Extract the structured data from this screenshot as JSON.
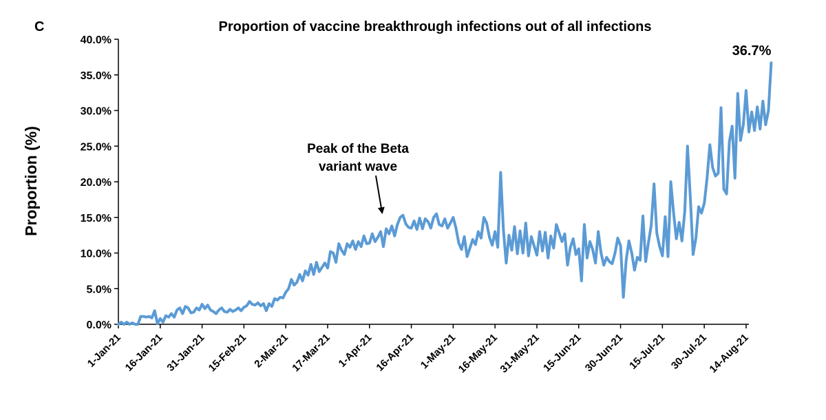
{
  "panel_letter": "C",
  "colors": {
    "line": "#5b9bd5",
    "axis": "#000000"
  },
  "chart_data": {
    "type": "line",
    "title": "Proportion of vaccine breakthrough infections out of all infections",
    "xlabel": "",
    "ylabel": "Proportion (%)",
    "ylim": [
      0,
      40
    ],
    "y_ticks": [
      "0.0%",
      "5.0%",
      "10.0%",
      "15.0%",
      "20.0%",
      "25.0%",
      "30.0%",
      "35.0%",
      "40.0%"
    ],
    "x_start": "2021-01-01",
    "x_end": "2021-08-15",
    "x_ticks": [
      "1-Jan-21",
      "16-Jan-21",
      "31-Jan-21",
      "15-Feb-21",
      "2-Mar-21",
      "17-Mar-21",
      "1-Apr-21",
      "16-Apr-21",
      "1-May-21",
      "16-May-21",
      "31-May-21",
      "15-Jun-21",
      "30-Jun-21",
      "15-Jul-21",
      "30-Jul-21",
      "14-Aug-21"
    ],
    "grid": false,
    "legend": "none",
    "annotations": [
      {
        "text_lines": [
          "Peak of the Beta",
          "variant wave"
        ],
        "date": "2021-04-05",
        "value": 14.0
      }
    ],
    "end_label": "36.7%",
    "series": [
      {
        "points": [
          [
            "2021-01-01",
            0.0
          ],
          [
            "2021-01-02",
            0.3
          ],
          [
            "2021-01-03",
            0.0
          ],
          [
            "2021-01-04",
            0.3
          ],
          [
            "2021-01-05",
            0.0
          ],
          [
            "2021-01-06",
            0.2
          ],
          [
            "2021-01-07",
            0.0
          ],
          [
            "2021-01-08",
            0.0
          ],
          [
            "2021-01-09",
            1.1
          ],
          [
            "2021-01-10",
            1.1
          ],
          [
            "2021-01-11",
            1.0
          ],
          [
            "2021-01-12",
            1.1
          ],
          [
            "2021-01-13",
            0.9
          ],
          [
            "2021-01-14",
            1.9
          ],
          [
            "2021-01-15",
            0.1
          ],
          [
            "2021-01-16",
            0.8
          ],
          [
            "2021-01-17",
            0.3
          ],
          [
            "2021-01-18",
            1.2
          ],
          [
            "2021-01-19",
            1.0
          ],
          [
            "2021-01-20",
            1.5
          ],
          [
            "2021-01-21",
            1.0
          ],
          [
            "2021-01-22",
            2.0
          ],
          [
            "2021-01-23",
            2.3
          ],
          [
            "2021-01-24",
            1.5
          ],
          [
            "2021-01-25",
            2.5
          ],
          [
            "2021-01-26",
            2.3
          ],
          [
            "2021-01-27",
            1.6
          ],
          [
            "2021-01-28",
            1.7
          ],
          [
            "2021-01-29",
            2.3
          ],
          [
            "2021-01-30",
            2.0
          ],
          [
            "2021-01-31",
            2.8
          ],
          [
            "2021-02-01",
            2.2
          ],
          [
            "2021-02-02",
            2.7
          ],
          [
            "2021-02-03",
            2.0
          ],
          [
            "2021-02-04",
            1.8
          ],
          [
            "2021-02-05",
            1.5
          ],
          [
            "2021-02-06",
            2.0
          ],
          [
            "2021-02-07",
            2.3
          ],
          [
            "2021-02-08",
            1.8
          ],
          [
            "2021-02-09",
            1.7
          ],
          [
            "2021-02-10",
            2.1
          ],
          [
            "2021-02-11",
            1.8
          ],
          [
            "2021-02-12",
            2.0
          ],
          [
            "2021-02-13",
            2.3
          ],
          [
            "2021-02-14",
            1.9
          ],
          [
            "2021-02-15",
            2.4
          ],
          [
            "2021-02-16",
            2.6
          ],
          [
            "2021-02-17",
            3.2
          ],
          [
            "2021-02-18",
            2.8
          ],
          [
            "2021-02-19",
            2.7
          ],
          [
            "2021-02-20",
            3.0
          ],
          [
            "2021-02-21",
            2.6
          ],
          [
            "2021-02-22",
            2.9
          ],
          [
            "2021-02-23",
            1.9
          ],
          [
            "2021-02-24",
            2.9
          ],
          [
            "2021-02-25",
            2.5
          ],
          [
            "2021-02-26",
            3.6
          ],
          [
            "2021-02-27",
            3.4
          ],
          [
            "2021-02-28",
            3.8
          ],
          [
            "2021-03-01",
            3.7
          ],
          [
            "2021-03-02",
            4.5
          ],
          [
            "2021-03-03",
            5.0
          ],
          [
            "2021-03-04",
            6.3
          ],
          [
            "2021-03-05",
            5.5
          ],
          [
            "2021-03-06",
            5.9
          ],
          [
            "2021-03-07",
            7.0
          ],
          [
            "2021-03-08",
            6.1
          ],
          [
            "2021-03-09",
            7.5
          ],
          [
            "2021-03-10",
            6.9
          ],
          [
            "2021-03-11",
            8.4
          ],
          [
            "2021-03-12",
            7.0
          ],
          [
            "2021-03-13",
            8.7
          ],
          [
            "2021-03-14",
            7.4
          ],
          [
            "2021-03-15",
            8.0
          ],
          [
            "2021-03-16",
            8.6
          ],
          [
            "2021-03-17",
            7.9
          ],
          [
            "2021-03-18",
            10.2
          ],
          [
            "2021-03-19",
            10.0
          ],
          [
            "2021-03-20",
            8.7
          ],
          [
            "2021-03-21",
            11.3
          ],
          [
            "2021-03-22",
            10.4
          ],
          [
            "2021-03-23",
            9.8
          ],
          [
            "2021-03-24",
            11.3
          ],
          [
            "2021-03-25",
            10.8
          ],
          [
            "2021-03-26",
            11.7
          ],
          [
            "2021-03-27",
            10.5
          ],
          [
            "2021-03-28",
            11.6
          ],
          [
            "2021-03-29",
            10.9
          ],
          [
            "2021-03-30",
            12.4
          ],
          [
            "2021-03-31",
            11.3
          ],
          [
            "2021-04-01",
            11.4
          ],
          [
            "2021-04-02",
            12.7
          ],
          [
            "2021-04-03",
            11.6
          ],
          [
            "2021-04-04",
            12.2
          ],
          [
            "2021-04-05",
            13.0
          ],
          [
            "2021-04-06",
            10.9
          ],
          [
            "2021-04-07",
            13.4
          ],
          [
            "2021-04-08",
            12.7
          ],
          [
            "2021-04-09",
            13.8
          ],
          [
            "2021-04-10",
            12.4
          ],
          [
            "2021-04-11",
            14.0
          ],
          [
            "2021-04-12",
            15.0
          ],
          [
            "2021-04-13",
            15.3
          ],
          [
            "2021-04-14",
            14.1
          ],
          [
            "2021-04-15",
            13.6
          ],
          [
            "2021-04-16",
            13.5
          ],
          [
            "2021-04-17",
            14.5
          ],
          [
            "2021-04-18",
            13.3
          ],
          [
            "2021-04-19",
            14.9
          ],
          [
            "2021-04-20",
            13.4
          ],
          [
            "2021-04-21",
            14.8
          ],
          [
            "2021-04-22",
            14.4
          ],
          [
            "2021-04-23",
            13.5
          ],
          [
            "2021-04-24",
            15.0
          ],
          [
            "2021-04-25",
            15.5
          ],
          [
            "2021-04-26",
            14.0
          ],
          [
            "2021-04-27",
            13.8
          ],
          [
            "2021-04-28",
            14.8
          ],
          [
            "2021-04-29",
            13.5
          ],
          [
            "2021-04-30",
            14.2
          ],
          [
            "2021-05-01",
            15.0
          ],
          [
            "2021-05-02",
            13.5
          ],
          [
            "2021-05-03",
            11.4
          ],
          [
            "2021-05-04",
            10.5
          ],
          [
            "2021-05-05",
            12.3
          ],
          [
            "2021-05-06",
            9.5
          ],
          [
            "2021-05-07",
            10.7
          ],
          [
            "2021-05-08",
            11.9
          ],
          [
            "2021-05-09",
            11.2
          ],
          [
            "2021-05-10",
            13.0
          ],
          [
            "2021-05-11",
            12.1
          ],
          [
            "2021-05-12",
            15.0
          ],
          [
            "2021-05-13",
            14.2
          ],
          [
            "2021-05-14",
            12.2
          ],
          [
            "2021-05-15",
            11.1
          ],
          [
            "2021-05-16",
            13.0
          ],
          [
            "2021-05-17",
            10.8
          ],
          [
            "2021-05-18",
            21.3
          ],
          [
            "2021-05-19",
            13.3
          ],
          [
            "2021-05-20",
            8.6
          ],
          [
            "2021-05-21",
            12.5
          ],
          [
            "2021-05-22",
            10.4
          ],
          [
            "2021-05-23",
            13.7
          ],
          [
            "2021-05-24",
            9.9
          ],
          [
            "2021-05-25",
            13.1
          ],
          [
            "2021-05-26",
            10.0
          ],
          [
            "2021-05-27",
            14.2
          ],
          [
            "2021-05-28",
            9.6
          ],
          [
            "2021-05-29",
            12.3
          ],
          [
            "2021-05-30",
            11.0
          ],
          [
            "2021-05-31",
            9.7
          ],
          [
            "2021-06-01",
            13.0
          ],
          [
            "2021-06-02",
            10.3
          ],
          [
            "2021-06-03",
            12.9
          ],
          [
            "2021-06-04",
            9.3
          ],
          [
            "2021-06-05",
            12.4
          ],
          [
            "2021-06-06",
            10.7
          ],
          [
            "2021-06-07",
            14.0
          ],
          [
            "2021-06-08",
            12.8
          ],
          [
            "2021-06-09",
            11.6
          ],
          [
            "2021-06-10",
            12.7
          ],
          [
            "2021-06-11",
            8.3
          ],
          [
            "2021-06-12",
            10.8
          ],
          [
            "2021-06-13",
            12.0
          ],
          [
            "2021-06-14",
            9.8
          ],
          [
            "2021-06-15",
            10.6
          ],
          [
            "2021-06-16",
            6.1
          ],
          [
            "2021-06-17",
            14.0
          ],
          [
            "2021-06-18",
            9.3
          ],
          [
            "2021-06-19",
            11.6
          ],
          [
            "2021-06-20",
            10.5
          ],
          [
            "2021-06-21",
            8.6
          ],
          [
            "2021-06-22",
            13.0
          ],
          [
            "2021-06-23",
            10.0
          ],
          [
            "2021-06-24",
            8.3
          ],
          [
            "2021-06-25",
            9.4
          ],
          [
            "2021-06-26",
            8.8
          ],
          [
            "2021-06-27",
            8.5
          ],
          [
            "2021-06-28",
            10.0
          ],
          [
            "2021-06-29",
            12.1
          ],
          [
            "2021-06-30",
            11.0
          ],
          [
            "2021-07-01",
            3.8
          ],
          [
            "2021-07-02",
            9.0
          ],
          [
            "2021-07-03",
            11.7
          ],
          [
            "2021-07-04",
            10.0
          ],
          [
            "2021-07-05",
            7.6
          ],
          [
            "2021-07-06",
            9.4
          ],
          [
            "2021-07-07",
            9.0
          ],
          [
            "2021-07-08",
            15.2
          ],
          [
            "2021-07-09",
            8.8
          ],
          [
            "2021-07-10",
            11.5
          ],
          [
            "2021-07-11",
            13.9
          ],
          [
            "2021-07-12",
            19.7
          ],
          [
            "2021-07-13",
            12.8
          ],
          [
            "2021-07-14",
            10.9
          ],
          [
            "2021-07-15",
            9.6
          ],
          [
            "2021-07-16",
            15.1
          ],
          [
            "2021-07-17",
            9.5
          ],
          [
            "2021-07-18",
            20.0
          ],
          [
            "2021-07-19",
            15.6
          ],
          [
            "2021-07-20",
            12.0
          ],
          [
            "2021-07-21",
            14.3
          ],
          [
            "2021-07-22",
            11.7
          ],
          [
            "2021-07-23",
            15.8
          ],
          [
            "2021-07-24",
            25.0
          ],
          [
            "2021-07-25",
            17.8
          ],
          [
            "2021-07-26",
            9.8
          ],
          [
            "2021-07-27",
            12.1
          ],
          [
            "2021-07-28",
            16.5
          ],
          [
            "2021-07-29",
            15.6
          ],
          [
            "2021-07-30",
            17.0
          ],
          [
            "2021-07-31",
            20.5
          ],
          [
            "2021-08-01",
            25.2
          ],
          [
            "2021-08-02",
            22.0
          ],
          [
            "2021-08-03",
            20.8
          ],
          [
            "2021-08-04",
            21.2
          ],
          [
            "2021-08-05",
            30.4
          ],
          [
            "2021-08-06",
            19.0
          ],
          [
            "2021-08-07",
            18.3
          ],
          [
            "2021-08-08",
            25.6
          ],
          [
            "2021-08-09",
            27.8
          ],
          [
            "2021-08-10",
            20.5
          ],
          [
            "2021-08-11",
            32.4
          ],
          [
            "2021-08-12",
            25.8
          ],
          [
            "2021-08-13",
            28.0
          ],
          [
            "2021-08-14",
            32.8
          ],
          [
            "2021-08-15",
            27.0
          ],
          [
            "2021-08-16",
            29.8
          ],
          [
            "2021-08-17",
            27.2
          ],
          [
            "2021-08-18",
            30.5
          ],
          [
            "2021-08-19",
            27.4
          ],
          [
            "2021-08-20",
            31.3
          ],
          [
            "2021-08-21",
            28.0
          ],
          [
            "2021-08-22",
            30.0
          ],
          [
            "2021-08-23",
            36.7
          ]
        ]
      }
    ]
  }
}
